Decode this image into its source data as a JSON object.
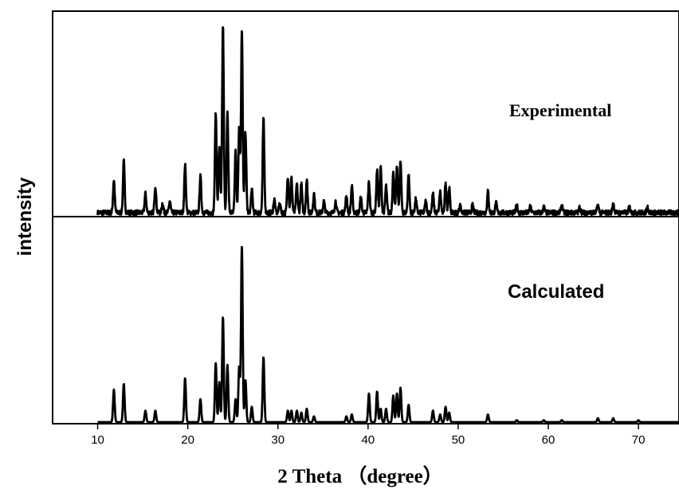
{
  "chart_data": {
    "type": "line",
    "xlabel": "2 Theta （degree）",
    "ylabel": "intensity",
    "xlim": [
      5,
      74.5
    ],
    "xticks": [
      10,
      20,
      30,
      40,
      50,
      60,
      70
    ],
    "grid": false,
    "legend": "none",
    "line_color": "#000000",
    "panels": [
      {
        "label": "Experimental",
        "position": "top",
        "peaks": [
          [
            11.8,
            0.17
          ],
          [
            12.9,
            0.27
          ],
          [
            15.3,
            0.1
          ],
          [
            16.4,
            0.14
          ],
          [
            17.2,
            0.05
          ],
          [
            18.0,
            0.06
          ],
          [
            19.7,
            0.25
          ],
          [
            21.4,
            0.19
          ],
          [
            23.1,
            0.52
          ],
          [
            23.5,
            0.35
          ],
          [
            23.9,
            0.98
          ],
          [
            24.4,
            0.52
          ],
          [
            25.3,
            0.32
          ],
          [
            25.7,
            0.45
          ],
          [
            26.0,
            0.95
          ],
          [
            26.4,
            0.42
          ],
          [
            27.1,
            0.12
          ],
          [
            28.4,
            0.49
          ],
          [
            29.6,
            0.07
          ],
          [
            30.2,
            0.05
          ],
          [
            31.1,
            0.19
          ],
          [
            31.5,
            0.18
          ],
          [
            32.1,
            0.15
          ],
          [
            32.6,
            0.15
          ],
          [
            33.2,
            0.17
          ],
          [
            34.0,
            0.1
          ],
          [
            35.1,
            0.06
          ],
          [
            36.4,
            0.06
          ],
          [
            37.6,
            0.09
          ],
          [
            38.2,
            0.14
          ],
          [
            39.2,
            0.08
          ],
          [
            40.1,
            0.16
          ],
          [
            41.0,
            0.22
          ],
          [
            41.4,
            0.24
          ],
          [
            42.0,
            0.14
          ],
          [
            42.8,
            0.21
          ],
          [
            43.2,
            0.24
          ],
          [
            43.6,
            0.27
          ],
          [
            44.5,
            0.2
          ],
          [
            45.3,
            0.07
          ],
          [
            46.4,
            0.06
          ],
          [
            47.2,
            0.1
          ],
          [
            48.0,
            0.11
          ],
          [
            48.6,
            0.15
          ],
          [
            49.0,
            0.13
          ],
          [
            50.2,
            0.04
          ],
          [
            51.6,
            0.04
          ],
          [
            53.3,
            0.11
          ],
          [
            54.2,
            0.05
          ],
          [
            56.5,
            0.04
          ],
          [
            58.0,
            0.03
          ],
          [
            59.5,
            0.03
          ],
          [
            61.5,
            0.04
          ],
          [
            63.5,
            0.03
          ],
          [
            65.5,
            0.04
          ],
          [
            67.2,
            0.05
          ],
          [
            69.0,
            0.03
          ],
          [
            71.0,
            0.03
          ]
        ],
        "noise": 0.025
      },
      {
        "label": "Calculated",
        "position": "bottom",
        "peaks": [
          [
            11.8,
            0.17
          ],
          [
            12.9,
            0.2
          ],
          [
            15.3,
            0.06
          ],
          [
            16.4,
            0.06
          ],
          [
            19.7,
            0.23
          ],
          [
            21.4,
            0.12
          ],
          [
            23.1,
            0.31
          ],
          [
            23.5,
            0.21
          ],
          [
            23.9,
            0.55
          ],
          [
            24.4,
            0.3
          ],
          [
            25.3,
            0.12
          ],
          [
            25.7,
            0.29
          ],
          [
            26.0,
            0.92
          ],
          [
            26.4,
            0.22
          ],
          [
            27.1,
            0.08
          ],
          [
            28.4,
            0.34
          ],
          [
            31.1,
            0.06
          ],
          [
            31.5,
            0.06
          ],
          [
            32.1,
            0.06
          ],
          [
            32.6,
            0.05
          ],
          [
            33.2,
            0.07
          ],
          [
            34.0,
            0.03
          ],
          [
            37.6,
            0.03
          ],
          [
            38.2,
            0.04
          ],
          [
            40.1,
            0.15
          ],
          [
            41.0,
            0.16
          ],
          [
            41.4,
            0.07
          ],
          [
            42.0,
            0.07
          ],
          [
            42.8,
            0.14
          ],
          [
            43.2,
            0.15
          ],
          [
            43.6,
            0.18
          ],
          [
            44.5,
            0.09
          ],
          [
            47.2,
            0.06
          ],
          [
            48.0,
            0.04
          ],
          [
            48.6,
            0.08
          ],
          [
            49.0,
            0.05
          ],
          [
            53.3,
            0.04
          ],
          [
            56.5,
            0.01
          ],
          [
            59.5,
            0.01
          ],
          [
            61.5,
            0.01
          ],
          [
            65.5,
            0.02
          ],
          [
            67.2,
            0.02
          ],
          [
            70.0,
            0.01
          ]
        ],
        "noise": 0.0
      }
    ]
  }
}
